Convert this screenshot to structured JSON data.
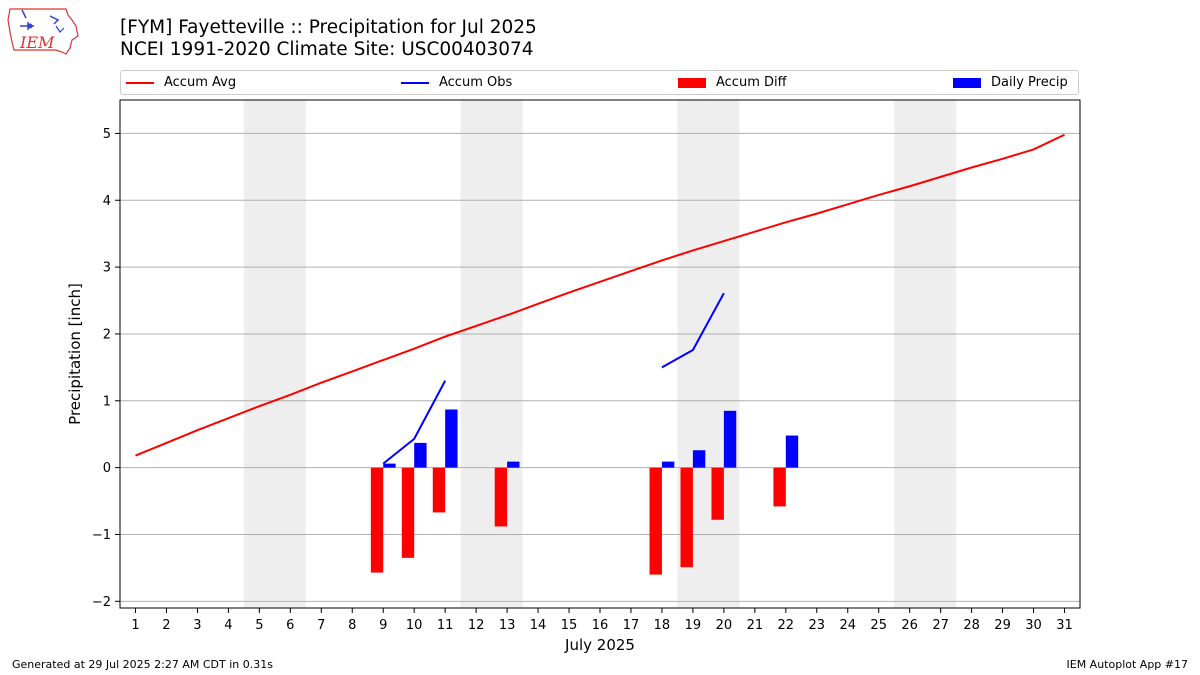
{
  "header": {
    "title_line1": "[FYM] Fayetteville :: Precipitation for Jul 2025",
    "title_line2": "NCEI 1991-2020 Climate Site: USC00403074",
    "logo_text": "IEM"
  },
  "footer": {
    "left": "Generated at 29 Jul 2025 2:27 AM CDT in 0.31s",
    "right": "IEM Autoplot App #17"
  },
  "colors": {
    "avg": "#ff0000",
    "obs": "#0000ff",
    "diff": "#ff0000",
    "daily": "#0000ff",
    "weekend": "#eeeeee",
    "grid": "#b0b0b0"
  },
  "chart_data": {
    "type": "bar",
    "xlabel": "July 2025",
    "ylabel": "Precipitation [inch]",
    "xlim": [
      0.5,
      31.5
    ],
    "ylim": [
      -2.1,
      5.5
    ],
    "yticks": [
      -2,
      -1,
      0,
      1,
      2,
      3,
      4,
      5
    ],
    "ytick_labels": [
      "−2",
      "−1",
      "0",
      "1",
      "2",
      "3",
      "4",
      "5"
    ],
    "days": [
      1,
      2,
      3,
      4,
      5,
      6,
      7,
      8,
      9,
      10,
      11,
      12,
      13,
      14,
      15,
      16,
      17,
      18,
      19,
      20,
      21,
      22,
      23,
      24,
      25,
      26,
      27,
      28,
      29,
      30,
      31
    ],
    "weekend_days": [
      5,
      6,
      12,
      13,
      19,
      20,
      26,
      27
    ],
    "grid": true,
    "legend_position": "top",
    "series": [
      {
        "name": "Accum Avg",
        "kind": "line",
        "x": [
          1,
          2,
          3,
          4,
          5,
          6,
          7,
          8,
          9,
          10,
          11,
          12,
          13,
          14,
          15,
          16,
          17,
          18,
          19,
          20,
          21,
          22,
          23,
          24,
          25,
          26,
          27,
          28,
          29,
          30,
          31
        ],
        "values": [
          0.18,
          0.37,
          0.56,
          0.74,
          0.92,
          1.09,
          1.27,
          1.44,
          1.61,
          1.78,
          1.96,
          2.12,
          2.28,
          2.45,
          2.62,
          2.78,
          2.94,
          3.1,
          3.25,
          3.39,
          3.53,
          3.67,
          3.8,
          3.94,
          4.08,
          4.21,
          4.35,
          4.49,
          4.62,
          4.76,
          4.98
        ]
      },
      {
        "name": "Accum Obs",
        "kind": "line",
        "segments": [
          {
            "x": [
              9,
              10,
              11
            ],
            "values": [
              0.06,
              0.43,
              1.3
            ]
          },
          {
            "x": [
              18,
              19,
              20
            ],
            "values": [
              1.5,
              1.76,
              2.61
            ]
          }
        ]
      },
      {
        "name": "Accum Diff",
        "kind": "bar",
        "x": [
          9,
          10,
          11,
          13,
          18,
          19,
          20,
          22
        ],
        "values": [
          -1.57,
          -1.35,
          -0.67,
          -0.88,
          -1.6,
          -1.49,
          -0.78,
          -0.58
        ]
      },
      {
        "name": "Daily Precip",
        "kind": "bar",
        "x": [
          9,
          10,
          11,
          13,
          18,
          19,
          20,
          22
        ],
        "values": [
          0.06,
          0.37,
          0.87,
          0.09,
          0.09,
          0.26,
          0.85,
          0.48
        ]
      }
    ]
  }
}
